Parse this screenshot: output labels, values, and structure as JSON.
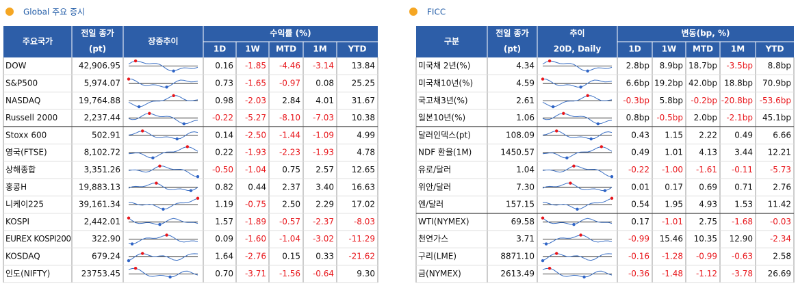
{
  "left": {
    "title": "Global 주요 증시",
    "header": [
      "주요국가",
      "전일 종가",
      "(pt)",
      "장중추이",
      "수익률 (%)"
    ],
    "subheader": [
      "1D",
      "1W",
      "MTD",
      "1M",
      "YTD"
    ],
    "rows": [
      [
        "DOW",
        "42,906.95",
        "0.16",
        "-1.85",
        "-4.46",
        "-3.14",
        "13.84"
      ],
      [
        "S&P500",
        "5,974.07",
        "0.73",
        "-1.65",
        "-0.97",
        "0.08",
        "25.25"
      ],
      [
        "NASDAQ",
        "19,764.88",
        "0.98",
        "-2.03",
        "2.84",
        "4.01",
        "31.67"
      ],
      [
        "Russell 2000",
        "2,237.44",
        "-0.22",
        "-5.27",
        "-8.10",
        "-7.03",
        "10.38"
      ],
      [
        "Stoxx 600",
        "502.91",
        "0.14",
        "-2.50",
        "-1.44",
        "-1.09",
        "4.99"
      ],
      [
        "영국(FTSE)",
        "8,102.72",
        "0.22",
        "-1.93",
        "-2.23",
        "-1.93",
        "4.78"
      ],
      [
        "상해종합",
        "3,351.26",
        "-0.50",
        "-1.04",
        "0.75",
        "2.57",
        "12.65"
      ],
      [
        "홍콩H",
        "19,883.13",
        "0.82",
        "0.44",
        "2.37",
        "3.40",
        "16.63"
      ],
      [
        "니케이225",
        "39,161.34",
        "1.19",
        "-0.75",
        "2.50",
        "2.29",
        "17.02"
      ],
      [
        "KOSPI",
        "2,442.01",
        "1.57",
        "-1.89",
        "-0.57",
        "-2.37",
        "-8.03"
      ],
      [
        "EUREX KOSPI200",
        "322.90",
        "0.09",
        "-1.60",
        "-1.04",
        "-3.02",
        "-11.29"
      ],
      [
        "KOSDAQ",
        "679.24",
        "1.64",
        "-2.76",
        "0.15",
        "0.33",
        "-21.62"
      ],
      [
        "인도(NIFTY)",
        "23753.45",
        "0.70",
        "-3.71",
        "-1.56",
        "-0.64",
        "9.30"
      ]
    ]
  },
  "right": {
    "title": "FICC",
    "header": [
      "구분",
      "전일 종가",
      "(pt)",
      "추이",
      "20D, Daily",
      "변동(bp, %)"
    ],
    "subheader": [
      "1D",
      "1W",
      "MTD",
      "1M",
      "YTD"
    ],
    "rows": [
      [
        "미국채 2년(%)",
        "4.34",
        "2.8bp",
        "8.9bp",
        "18.7bp",
        "-3.5bp",
        "8.8bp"
      ],
      [
        "미국채10년(%)",
        "4.59",
        "6.6bp",
        "19.2bp",
        "42.0bp",
        "18.8bp",
        "70.9bp"
      ],
      [
        "국고채3년(%)",
        "2.61",
        "-0.3bp",
        "5.8bp",
        "-0.2bp",
        "-20.8bp",
        "-53.6bp"
      ],
      [
        "일본10년(%)",
        "1.06",
        "0.8bp",
        "-0.5bp",
        "2.0bp",
        "-2.1bp",
        "45.1bp"
      ],
      [
        "달러인덱스(pt)",
        "108.09",
        "0.43",
        "1.15",
        "2.22",
        "0.49",
        "6.66"
      ],
      [
        "NDF 환율(1M)",
        "1450.57",
        "0.49",
        "1.01",
        "4.13",
        "3.44",
        "12.21"
      ],
      [
        "유로/달러",
        "1.04",
        "-0.22",
        "-1.00",
        "-1.61",
        "-0.11",
        "-5.73"
      ],
      [
        "위안/달러",
        "7.30",
        "0.01",
        "0.17",
        "0.69",
        "0.71",
        "2.76"
      ],
      [
        "엔/달러",
        "157.15",
        "0.54",
        "1.95",
        "4.93",
        "1.53",
        "11.42"
      ],
      [
        "WTI(NYMEX)",
        "69.58",
        "0.17",
        "-1.01",
        "2.75",
        "-1.68",
        "-0.03"
      ],
      [
        "천연가스",
        "3.71",
        "-0.99",
        "15.46",
        "10.35",
        "12.90",
        "-2.34"
      ],
      [
        "구리(LME)",
        "8871.10",
        "-0.16",
        "-1.28",
        "-0.99",
        "-0.63",
        "2.58"
      ],
      [
        "금(NYMEX)",
        "2613.49",
        "-0.36",
        "-1.48",
        "-1.12",
        "-3.78",
        "26.69"
      ]
    ]
  }
}
